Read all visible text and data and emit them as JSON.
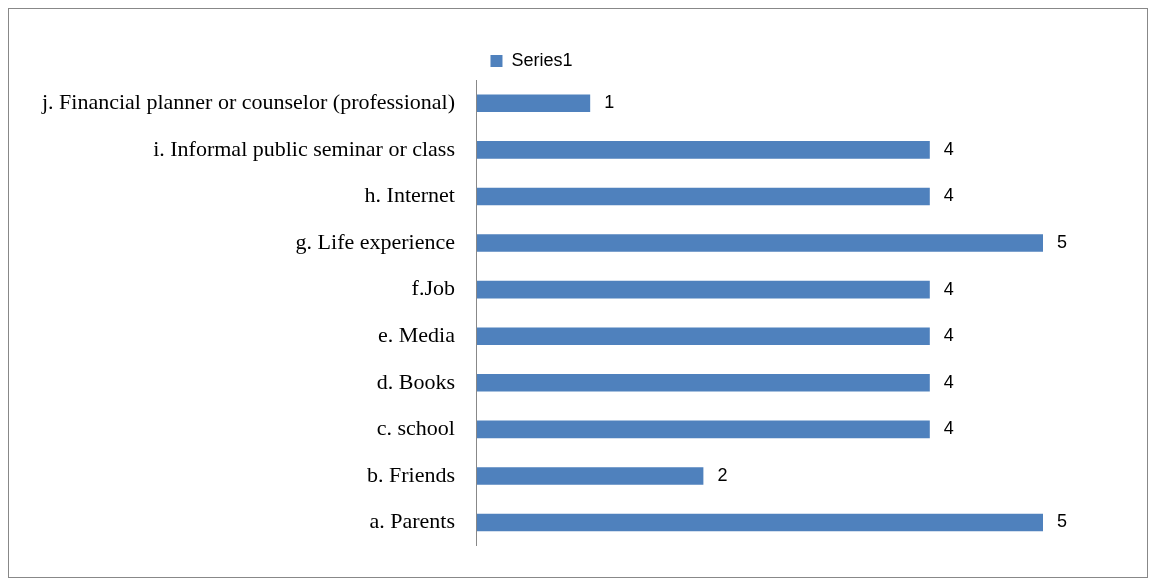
{
  "chart_data": {
    "type": "bar",
    "orientation": "horizontal",
    "categories": [
      "j. Financial planner or counselor (professional)",
      "i. Informal public seminar or class",
      "h. Internet",
      "g. Life experience",
      "f.Job",
      "e. Media",
      "d. Books",
      "c. school",
      "b. Friends",
      "a. Parents"
    ],
    "series": [
      {
        "name": "Series1",
        "color": "#4f81bd",
        "values": [
          1,
          4,
          4,
          5,
          4,
          4,
          4,
          4,
          2,
          5
        ]
      }
    ],
    "data_labels": true,
    "legend": "top",
    "grid": false
  }
}
